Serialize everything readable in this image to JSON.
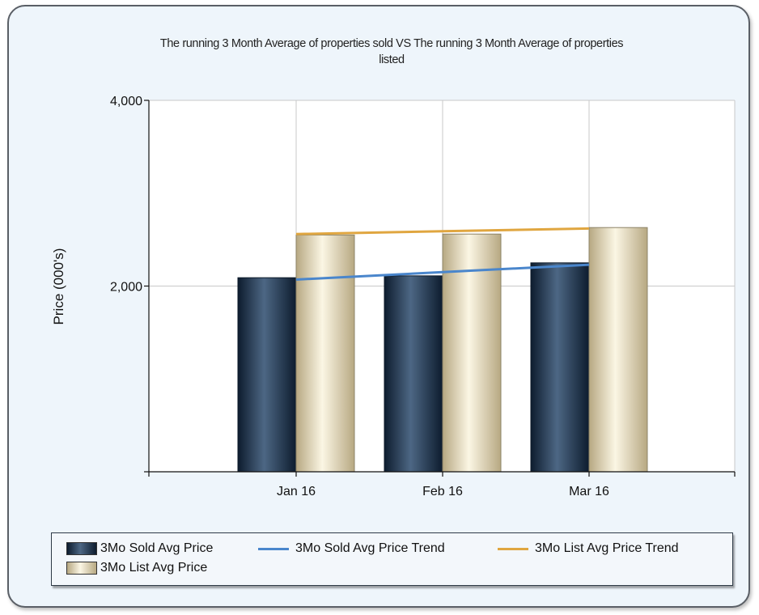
{
  "chart_data": {
    "type": "bar",
    "title": "The running 3 Month Average of properties sold VS The running 3 Month Average of properties listed",
    "title_lines": [
      "The running 3 Month Average of properties sold VS The running 3 Month Average of properties",
      "listed"
    ],
    "xlabel": "",
    "ylabel": "Price (000's)",
    "categories": [
      "Jan 16",
      "Feb 16",
      "Mar 16"
    ],
    "ylim": [
      0,
      4000
    ],
    "yticks": [
      2000,
      4000
    ],
    "ytick_labels": [
      "2,000",
      "4,000"
    ],
    "grid": true,
    "legend_position": "bottom",
    "series": [
      {
        "name": "3Mo Sold Avg Price",
        "kind": "bar",
        "color": "#1c3350",
        "values": [
          2090,
          2110,
          2250
        ]
      },
      {
        "name": "3Mo List Avg Price",
        "kind": "bar",
        "color": "#efe5c4",
        "values": [
          2550,
          2560,
          2630
        ]
      },
      {
        "name": "3Mo Sold Avg Price Trend",
        "kind": "line",
        "color": "#4a86cc",
        "values": [
          2070,
          2150,
          2230
        ]
      },
      {
        "name": "3Mo List Avg Price Trend",
        "kind": "line",
        "color": "#e0a640",
        "values": [
          2560,
          2590,
          2620
        ]
      }
    ]
  }
}
